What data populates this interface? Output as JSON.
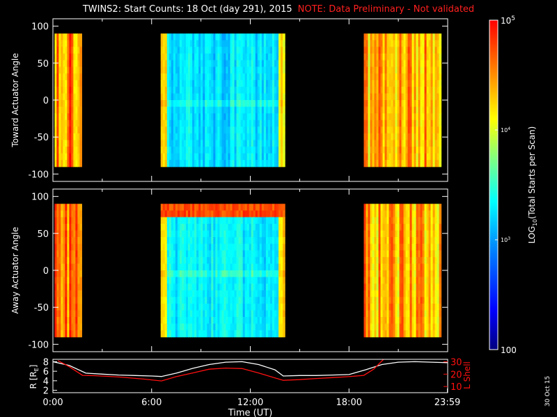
{
  "header": {
    "title": "TWINS2: Start Counts: 18 Oct (day 291), 2015",
    "note": "NOTE: Data Preliminary - Not validated"
  },
  "footer": {
    "stamp": "30 Oct 15"
  },
  "colors": {
    "background": "#000000",
    "note": "#ff2020",
    "lshell": "#ff1010",
    "radius": "#ffffff"
  },
  "chart_data": [
    {
      "type": "heatmap",
      "panel": "toward",
      "ylabel": "Toward Actuator Angle",
      "xlabel": "",
      "ylim": [
        -110,
        110
      ],
      "yticks": [
        100,
        50,
        0,
        -50,
        -100
      ],
      "data_range": [
        -90,
        90
      ],
      "xlim_hours": [
        0,
        24
      ],
      "segments": [
        {
          "start": 0.1,
          "end": 1.75,
          "log_counts_base": 4.55,
          "note": "orange/red high counts"
        },
        {
          "start": 6.55,
          "end": 14.1,
          "log_counts_base": 3.25,
          "note": "cyan/blue moderate counts, yellow edges"
        },
        {
          "start": 18.9,
          "end": 23.6,
          "log_counts_base": 4.4,
          "note": "striped orange/yellow/cyan"
        }
      ]
    },
    {
      "type": "heatmap",
      "panel": "away",
      "ylabel": "Away Actuator Angle",
      "xlabel": "",
      "ylim": [
        -110,
        110
      ],
      "yticks": [
        100,
        50,
        0,
        -50,
        -100
      ],
      "data_range": [
        -90,
        90
      ],
      "xlim_hours": [
        0,
        24
      ],
      "segments": [
        {
          "start": 0.1,
          "end": 1.75,
          "log_counts_base": 4.55,
          "note": "orange/red high counts"
        },
        {
          "start": 6.55,
          "end": 14.1,
          "log_counts_base": 3.3,
          "note": "cyan with red band at top"
        },
        {
          "start": 18.9,
          "end": 23.6,
          "log_counts_base": 4.4,
          "note": "striped orange/yellow/cyan"
        }
      ]
    },
    {
      "type": "line",
      "panel": "orbit",
      "xlabel": "Time (UT)",
      "xticks": [
        "0:00",
        "6:00",
        "12:00",
        "18:00",
        "23:59"
      ],
      "xtick_hours": [
        0,
        6,
        12,
        18,
        23.98
      ],
      "left_axis": {
        "label": "R [R",
        "label_sub": "E",
        "label_end": "]",
        "ticks": [
          "2",
          "4",
          "6",
          "8"
        ],
        "ylim": [
          1.5,
          8.5
        ]
      },
      "right_axis": {
        "label": "L Shell",
        "ticks": [
          "10",
          "20",
          "30"
        ],
        "ylim": [
          5,
          32
        ]
      },
      "series": [
        {
          "name": "R",
          "axis": "left",
          "x": [
            0,
            1,
            2,
            3,
            4,
            5,
            6,
            6.6,
            7.5,
            8.5,
            9.5,
            10.5,
            11.5,
            12.5,
            13.5,
            14.0,
            15,
            16,
            17,
            18,
            19,
            20,
            21,
            22,
            23,
            24
          ],
          "y": [
            8.0,
            7.2,
            5.6,
            5.4,
            5.2,
            5.1,
            5.0,
            4.9,
            5.6,
            6.6,
            7.4,
            7.9,
            8.0,
            7.4,
            6.3,
            5.0,
            5.1,
            5.1,
            5.2,
            5.3,
            6.3,
            7.4,
            7.9,
            8.0,
            7.9,
            7.8
          ]
        },
        {
          "name": "L Shell",
          "axis": "right",
          "x": [
            0.3,
            1.0,
            1.8,
            2.5,
            4.0,
            5.5,
            6.6,
            7.5,
            8.5,
            9.5,
            10.5,
            11.5,
            12.5,
            13.5,
            14.0,
            15,
            16,
            17,
            18,
            18.9,
            19.5,
            20.1
          ],
          "y": [
            31,
            26,
            19,
            18.8,
            17.7,
            16.0,
            14.5,
            18.0,
            21.0,
            24.0,
            24.9,
            24.5,
            21.0,
            17.0,
            15.0,
            15.6,
            16.5,
            17.2,
            18.0,
            19.0,
            24.0,
            32
          ]
        }
      ]
    },
    {
      "type": "colorbar",
      "label": "LOG",
      "label_sub": "10",
      "label_rest": "(Total Starts per Scan)",
      "ticks": [
        "10",
        "10",
        "10",
        "100"
      ],
      "tick_exponents": [
        "5",
        "4",
        "3",
        ""
      ],
      "range_log": [
        2,
        5
      ]
    }
  ]
}
